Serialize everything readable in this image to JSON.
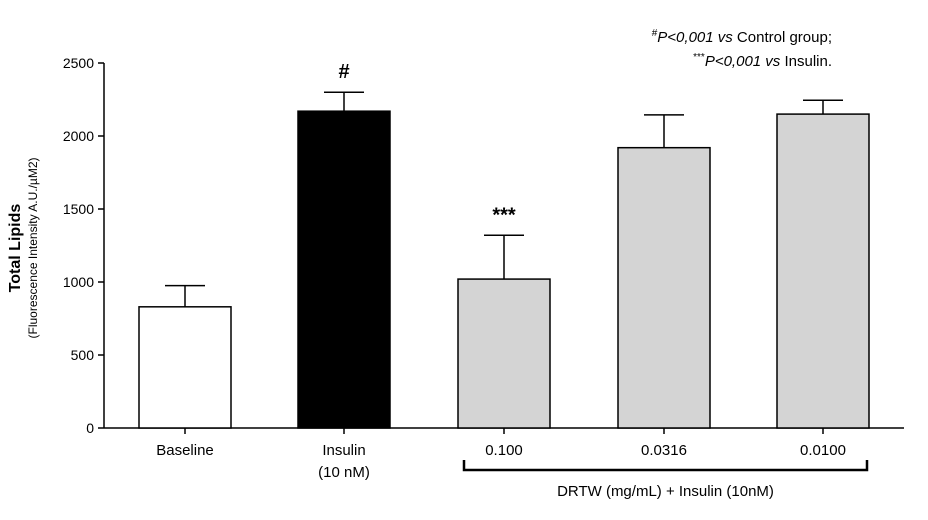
{
  "chart_data": {
    "type": "bar",
    "ylabel": "Total Lipids",
    "ylabel_sub": "(Fluorescence Intensity A.U./µM2)",
    "ylim": [
      0,
      2500
    ],
    "yticks": [
      0,
      500,
      1000,
      1500,
      2000,
      2500
    ],
    "categories": [
      {
        "label": "Baseline",
        "sublabel": ""
      },
      {
        "label": "Insulin",
        "sublabel": "(10 nM)"
      },
      {
        "label": "0.100",
        "sublabel": ""
      },
      {
        "label": "0.0316",
        "sublabel": ""
      },
      {
        "label": "0.0100",
        "sublabel": ""
      }
    ],
    "values": [
      830,
      2170,
      1020,
      1920,
      2150
    ],
    "errors": [
      145,
      130,
      300,
      225,
      95
    ],
    "bar_colors": [
      "#ffffff",
      "#000000",
      "#d4d4d4",
      "#d4d4d4",
      "#d4d4d4"
    ],
    "annotations": [
      "",
      "#",
      "***",
      "",
      ""
    ],
    "group_bracket": {
      "label": "DRTW (mg/mL) + Insulin (10nM)",
      "from_index": 2,
      "to_index": 4
    },
    "legend_notes": {
      "line1": {
        "sup": "#",
        "italic": "P<0,001 vs",
        "text": " Control group;"
      },
      "line2": {
        "sup": "***",
        "italic": "P<0,001 vs",
        "text": " Insulin."
      }
    }
  }
}
